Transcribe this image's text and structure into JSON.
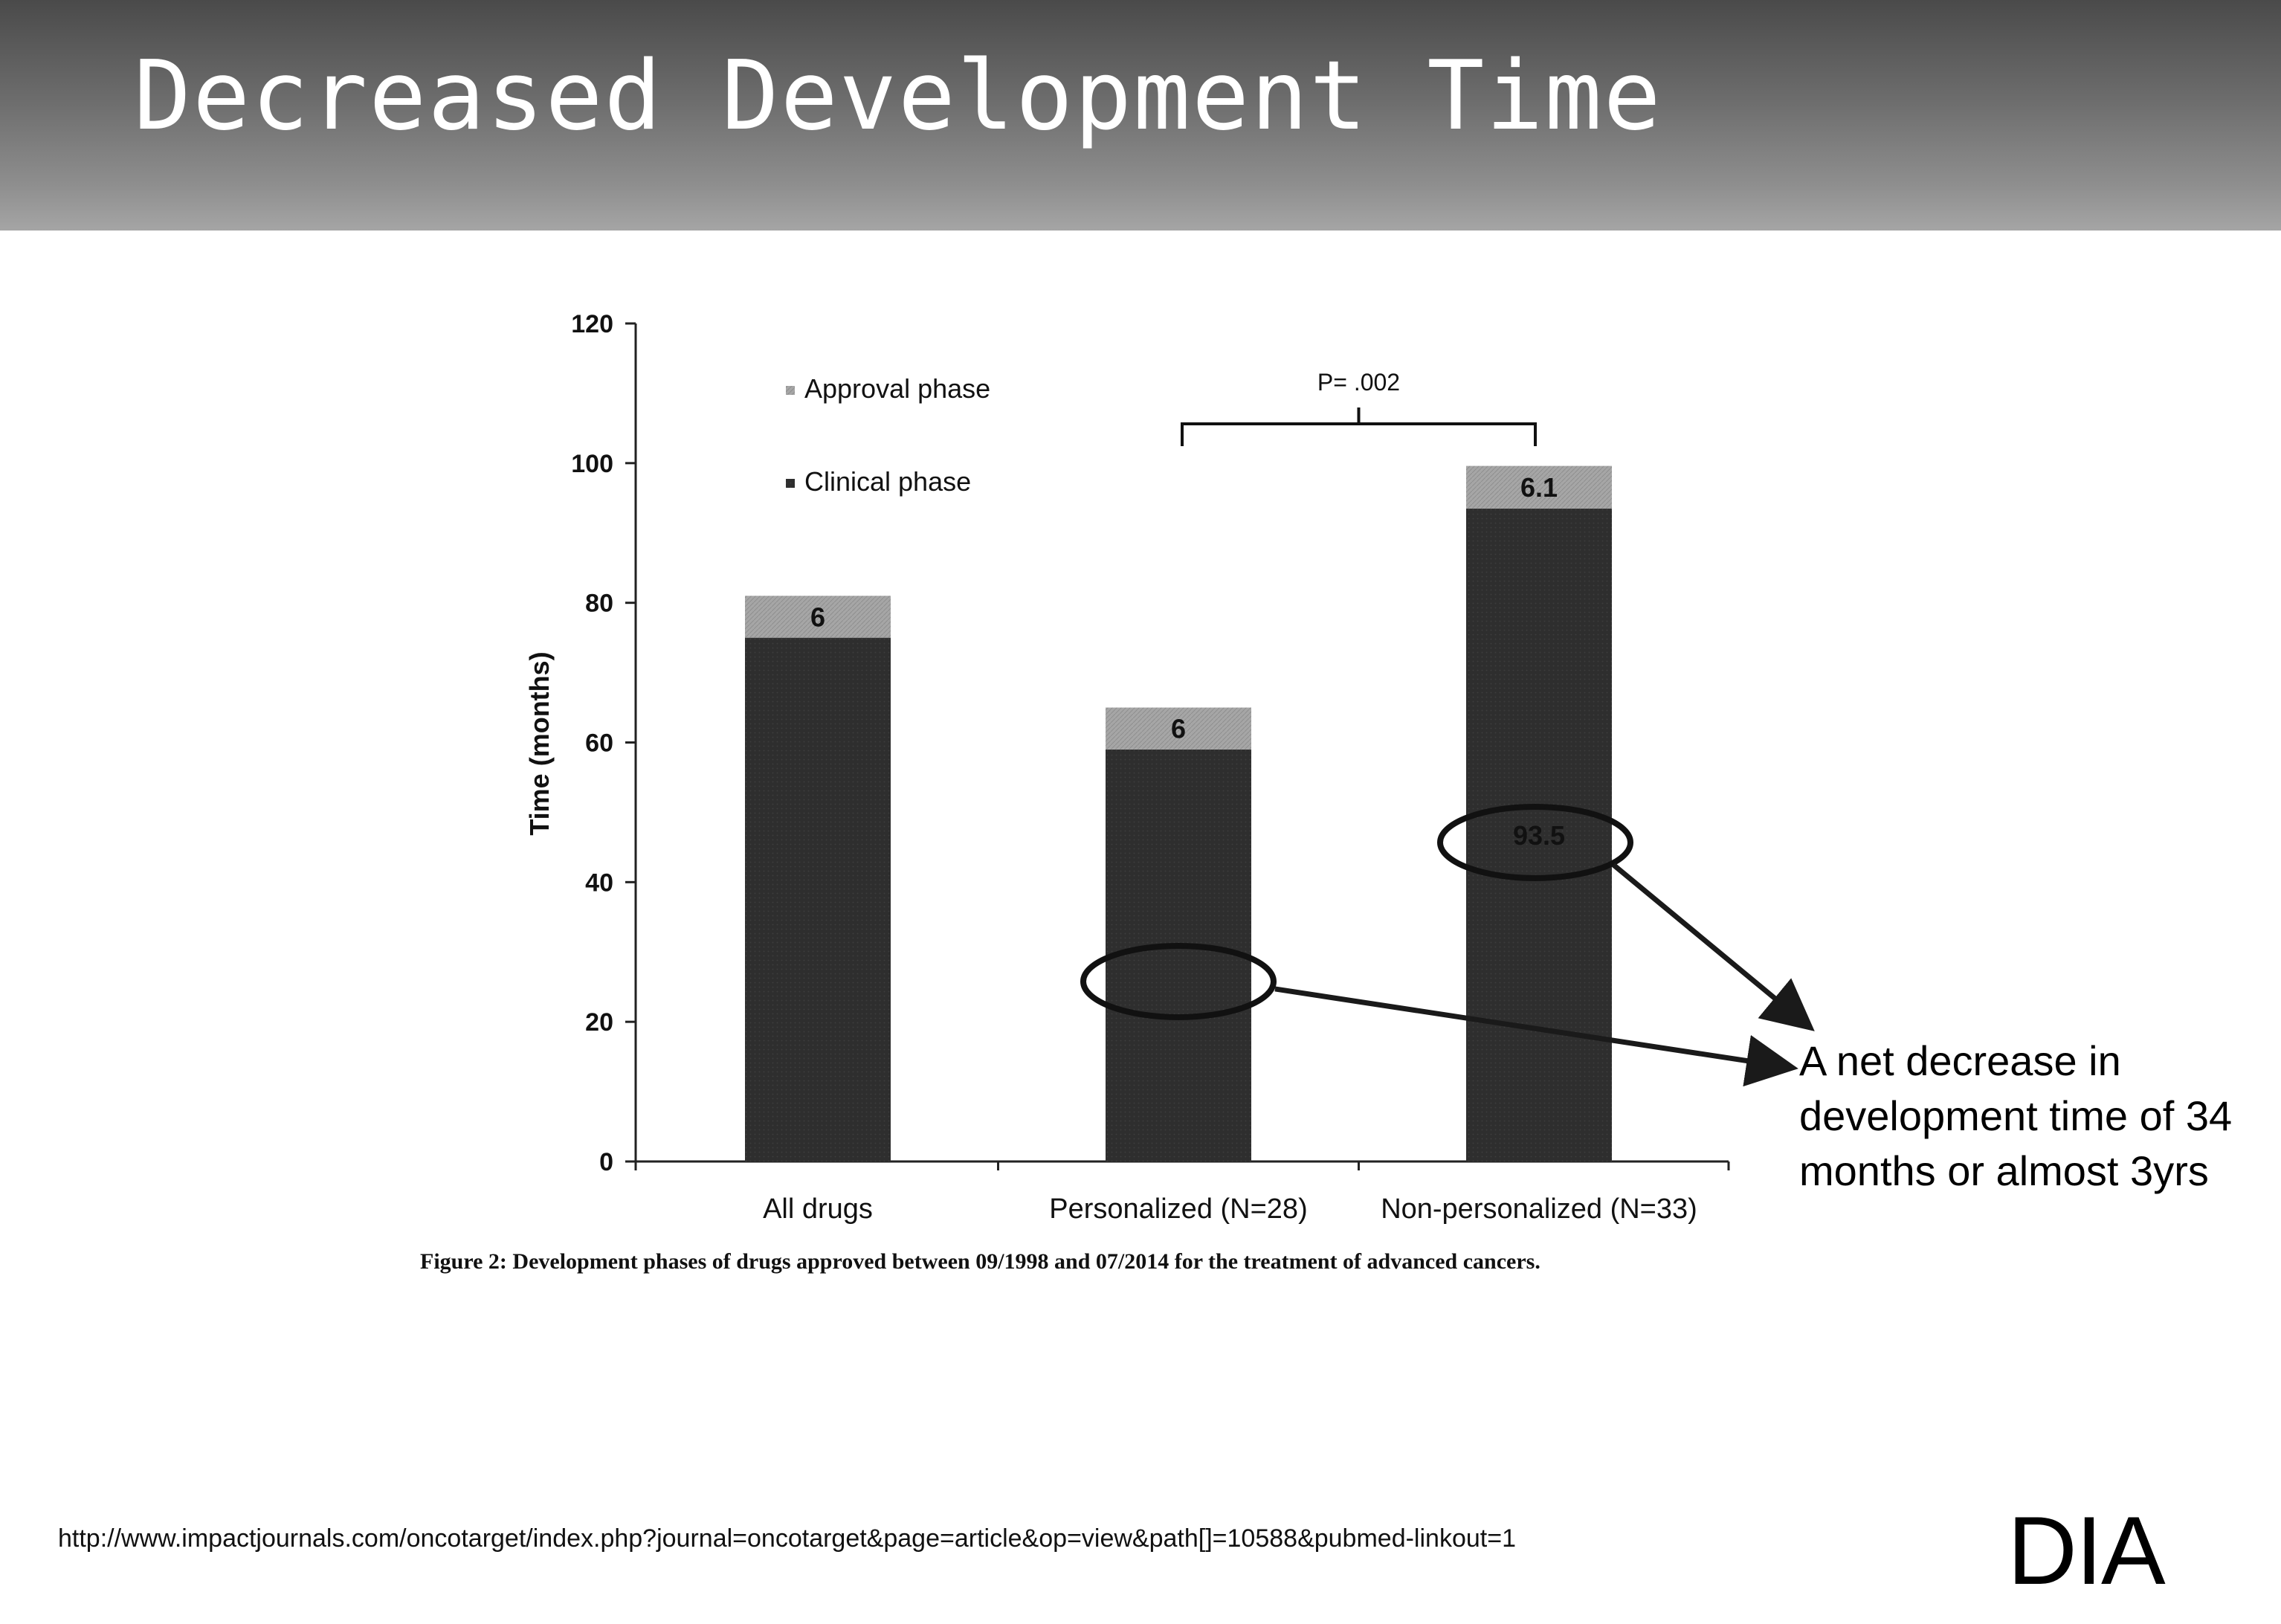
{
  "slide": {
    "title": "Decreased Development Time",
    "caption": "Figure 2: Development phases of drugs approved between 09/1998 and 07/2014 for the treatment of advanced cancers.",
    "annotation": "A net decrease in development time of 34 months or almost 3yrs",
    "source_url": "http://www.impactjournals.com/oncotarget/index.php?journal=oncotarget&page=article&op=view&path[]=10588&pubmed-linkout=1",
    "logo": "DIA"
  },
  "chart_data": {
    "type": "bar",
    "stacked": true,
    "categories": [
      "All drugs",
      "Personalized (N=28)",
      "Non-personalized (N=33)"
    ],
    "series": [
      {
        "name": "Clinical phase",
        "values": [
          75,
          59,
          93.5
        ],
        "labels": [
          "",
          "",
          "93.5"
        ],
        "color": "#2e2e2e"
      },
      {
        "name": "Approval phase",
        "values": [
          6,
          6,
          6.1
        ],
        "labels": [
          "6",
          "6",
          "6.1"
        ],
        "color": "#a6a6a6"
      }
    ],
    "ylabel": "Time (months)",
    "xlabel": "",
    "ylim": [
      0,
      120
    ],
    "yticks": [
      0,
      20,
      40,
      60,
      80,
      100,
      120
    ],
    "legend_position": "top-left",
    "significance": {
      "label": "P= .002",
      "between": [
        1,
        2
      ]
    },
    "highlighted_values": [
      1,
      2
    ],
    "annotation_arrows_target": "annotation"
  }
}
